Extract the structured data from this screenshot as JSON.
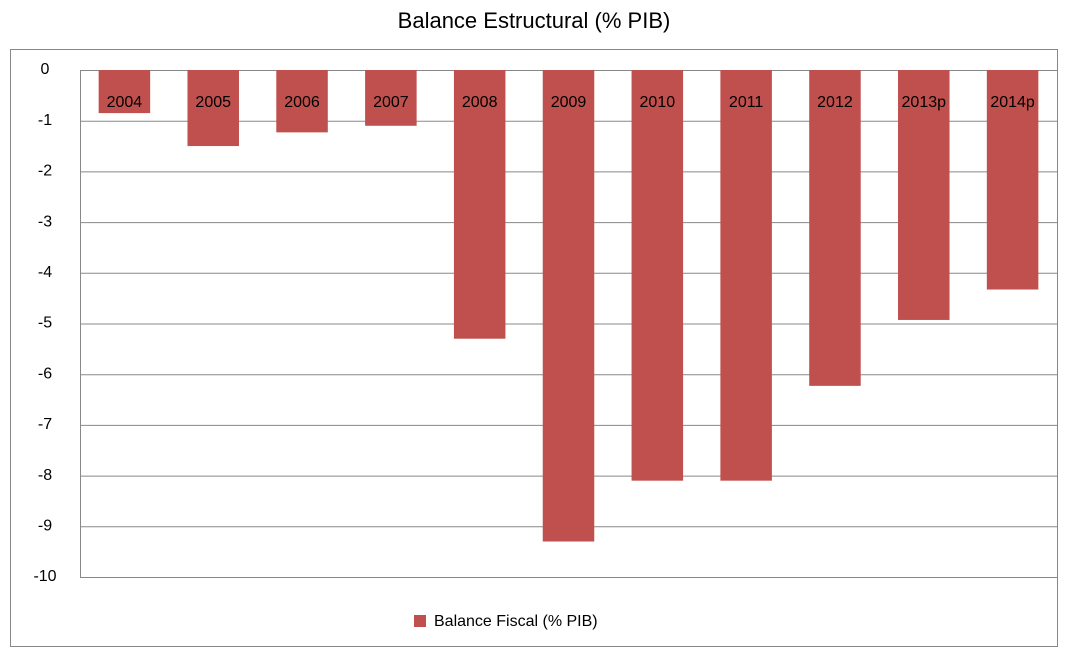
{
  "chart_data": {
    "type": "bar",
    "title": "Balance Estructural (% PIB)",
    "categories": [
      "2004",
      "2005",
      "2006",
      "2007",
      "2008",
      "2009",
      "2010",
      "2011",
      "2012",
      "2013p",
      "2014p"
    ],
    "series": [
      {
        "name": "Balance Fiscal (% PIB)",
        "color": "#c0504d",
        "values": [
          -0.85,
          -1.5,
          -1.23,
          -1.1,
          -5.3,
          -9.3,
          -8.1,
          -8.1,
          -6.23,
          -4.93,
          -4.33
        ]
      }
    ],
    "ylim": [
      -10,
      0
    ],
    "yticks": [
      0,
      -1,
      -2,
      -3,
      -4,
      -5,
      -6,
      -7,
      -8,
      -9,
      -10
    ],
    "grid": true,
    "legend": "bottom"
  }
}
